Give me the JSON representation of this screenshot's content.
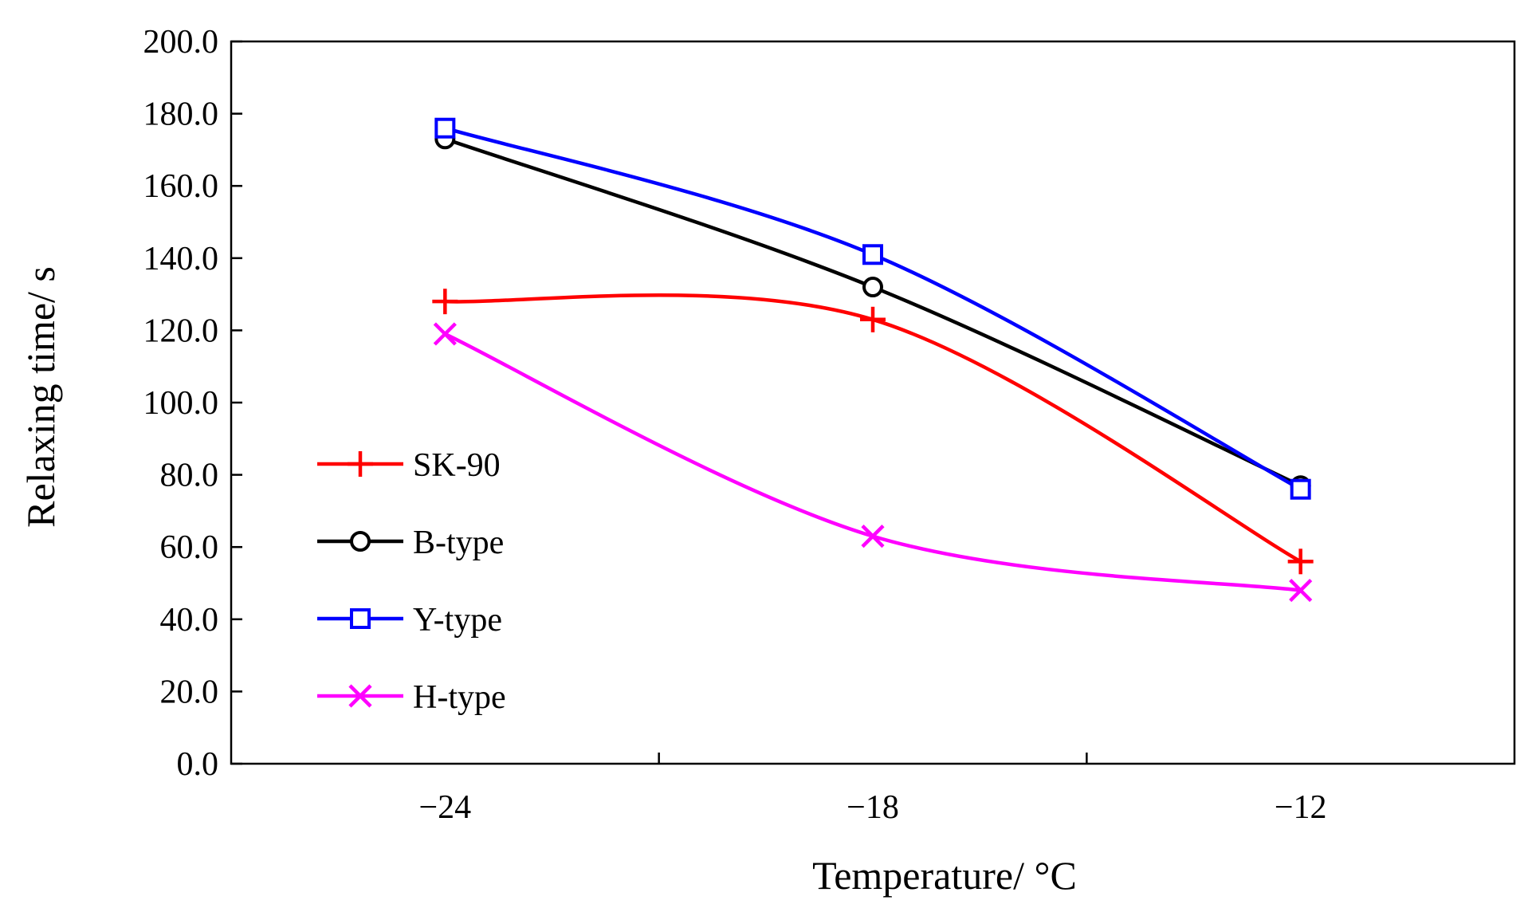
{
  "chart_data": {
    "type": "line",
    "title": "",
    "xlabel": "Temperature/ °C",
    "ylabel": "Relaxing time/ s",
    "categories": [
      "−24",
      "−18",
      "−12"
    ],
    "x": [
      -24,
      -18,
      -12
    ],
    "xlim": [
      -27,
      -9
    ],
    "ylim": [
      0,
      200
    ],
    "yticks": [
      0,
      20,
      40,
      60,
      80,
      100,
      120,
      140,
      160,
      180,
      200
    ],
    "ytick_labels": [
      "0.0",
      "20.0",
      "40.0",
      "60.0",
      "80.0",
      "100.0",
      "120.0",
      "140.0",
      "160.0",
      "180.0",
      "200.0"
    ],
    "grid": false,
    "smooth": true,
    "legend_position": "left",
    "series": [
      {
        "name": "SK-90",
        "values": [
          128,
          123,
          56
        ],
        "color": "#ff0000",
        "marker": "plus"
      },
      {
        "name": "B-type",
        "values": [
          173,
          132,
          77
        ],
        "color": "#000000",
        "marker": "circle"
      },
      {
        "name": "Y-type",
        "values": [
          176,
          141,
          76
        ],
        "color": "#0000ff",
        "marker": "square"
      },
      {
        "name": "H-type",
        "values": [
          119,
          63,
          48
        ],
        "color": "#ff00ff",
        "marker": "x"
      }
    ]
  }
}
